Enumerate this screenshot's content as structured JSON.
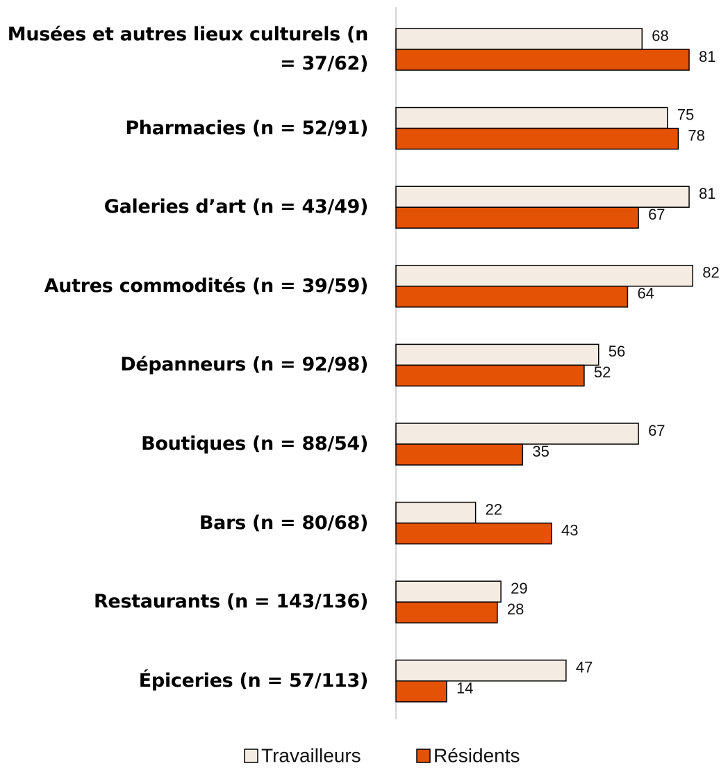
{
  "chart_data": {
    "type": "barh",
    "categories": [
      "Musées et autres lieux culturels (n = 37/62)",
      "Pharmacies (n = 52/91)",
      "Galeries d’art (n = 43/49)",
      "Autres commodités (n = 39/59)",
      "Dépanneurs (n = 92/98)",
      "Boutiques (n = 88/54)",
      "Bars (n = 80/68)",
      "Restaurants (n = 143/136)",
      "Épiceries (n = 57/113)"
    ],
    "series": [
      {
        "name": "Travailleurs",
        "color": "#f4ebe2",
        "values": [
          68,
          75,
          81,
          82,
          56,
          67,
          22,
          29,
          47
        ]
      },
      {
        "name": "Résidents",
        "color": "#e35205",
        "values": [
          81,
          78,
          67,
          64,
          52,
          35,
          43,
          28,
          14
        ]
      }
    ],
    "legend": "bottom"
  }
}
